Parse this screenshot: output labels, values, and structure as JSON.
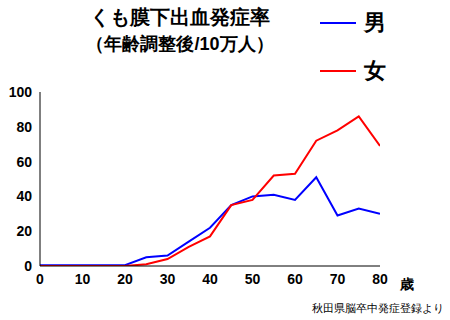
{
  "chart_data": {
    "type": "line",
    "title": "くも膜下出血発症率",
    "subtitle": "（年齢調整後/10万人）",
    "x_label": "歳",
    "source": "秋田県脳卒中発症登録より",
    "x": [
      0,
      5,
      10,
      15,
      20,
      25,
      30,
      35,
      40,
      45,
      50,
      55,
      60,
      65,
      70,
      75,
      80
    ],
    "series": [
      {
        "name": "男",
        "color": "#0000ff",
        "values": [
          0.5,
          0.5,
          0.5,
          0.5,
          0.5,
          5,
          6,
          14,
          22,
          35,
          40,
          41,
          38,
          51,
          29,
          33,
          30
        ]
      },
      {
        "name": "女",
        "color": "#ff0000",
        "values": [
          0,
          0,
          0,
          0,
          0,
          1,
          4,
          11,
          17,
          35,
          38,
          52,
          53,
          72,
          78,
          86,
          69
        ]
      }
    ],
    "xlim": [
      0,
      80
    ],
    "xticks": [
      0,
      10,
      20,
      30,
      40,
      50,
      60,
      70,
      80
    ],
    "ylim": [
      0,
      100
    ],
    "yticks": [
      0,
      20,
      40,
      60,
      80,
      100
    ],
    "grid": false,
    "legend": "top-right"
  }
}
